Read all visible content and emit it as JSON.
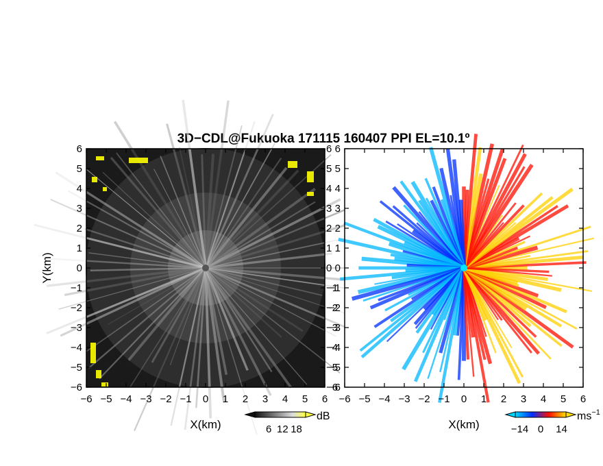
{
  "title": "3D−CDL@Fukuoka 171115 160407 PPI EL=10.1º",
  "chart_data": [
    {
      "type": "heatmap",
      "quantity": "signal",
      "xlabel": "X(km)",
      "ylabel": "Y(km)",
      "xlim": [
        -6,
        6
      ],
      "ylim": [
        -6,
        6
      ],
      "xticks": [
        "−6",
        "−5",
        "−4",
        "−3",
        "−2",
        "−1",
        "0",
        "1",
        "2",
        "3",
        "4",
        "5",
        "6"
      ],
      "yticks": [
        "−6",
        "−5",
        "−4",
        "−3",
        "−2",
        "−1",
        "0",
        "1",
        "2",
        "3",
        "4",
        "5",
        "6"
      ],
      "colorbar": {
        "ticks": [
          "6",
          "12",
          "18"
        ],
        "tick_values": [
          6,
          12,
          18
        ],
        "unit": "dB",
        "range": [
          0,
          22
        ]
      },
      "colors": {
        "low": "#101010",
        "high": "#f4f4f4",
        "strong": "#ffff00"
      }
    },
    {
      "type": "heatmap",
      "quantity": "radial velocity",
      "xlabel": "X(km)",
      "xlim": [
        -6,
        6
      ],
      "ylim": [
        -6,
        6
      ],
      "xticks": [
        "−6",
        "−5",
        "−4",
        "−3",
        "−2",
        "−1",
        "0",
        "1",
        "2",
        "3",
        "4",
        "5",
        "6"
      ],
      "yticks": [
        "−6",
        "−5",
        "−4",
        "−3",
        "−2",
        "−1",
        "0",
        "1",
        "2",
        "3",
        "4",
        "5",
        "6"
      ],
      "colorbar": {
        "ticks": [
          "−14",
          "0",
          "14"
        ],
        "tick_values": [
          -14,
          0,
          14
        ],
        "unit": "ms",
        "unit_exponent": "−1",
        "range": [
          -17,
          17
        ]
      },
      "colors": {
        "neg_far": "#00b7ff",
        "neg_near": "#0030ff",
        "pos_near": "#ff1000",
        "pos_far": "#ffd000",
        "site": "#00e5ff"
      }
    }
  ]
}
